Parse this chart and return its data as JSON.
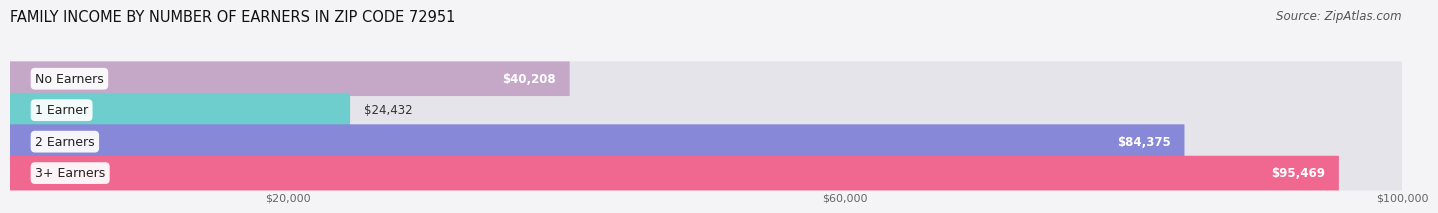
{
  "title": "FAMILY INCOME BY NUMBER OF EARNERS IN ZIP CODE 72951",
  "source": "Source: ZipAtlas.com",
  "categories": [
    "No Earners",
    "1 Earner",
    "2 Earners",
    "3+ Earners"
  ],
  "values": [
    40208,
    24432,
    84375,
    95469
  ],
  "bar_colors": [
    "#c5a8c8",
    "#6ecece",
    "#8888d8",
    "#f06890"
  ],
  "x_max": 100000,
  "x_ticks": [
    20000,
    60000,
    100000
  ],
  "x_tick_labels": [
    "$20,000",
    "$60,000",
    "$100,000"
  ],
  "background_color": "#f4f4f6",
  "bar_bg_color": "#e4e4ea",
  "title_fontsize": 10.5,
  "source_fontsize": 8.5,
  "value_fontsize": 8.5,
  "category_fontsize": 9
}
